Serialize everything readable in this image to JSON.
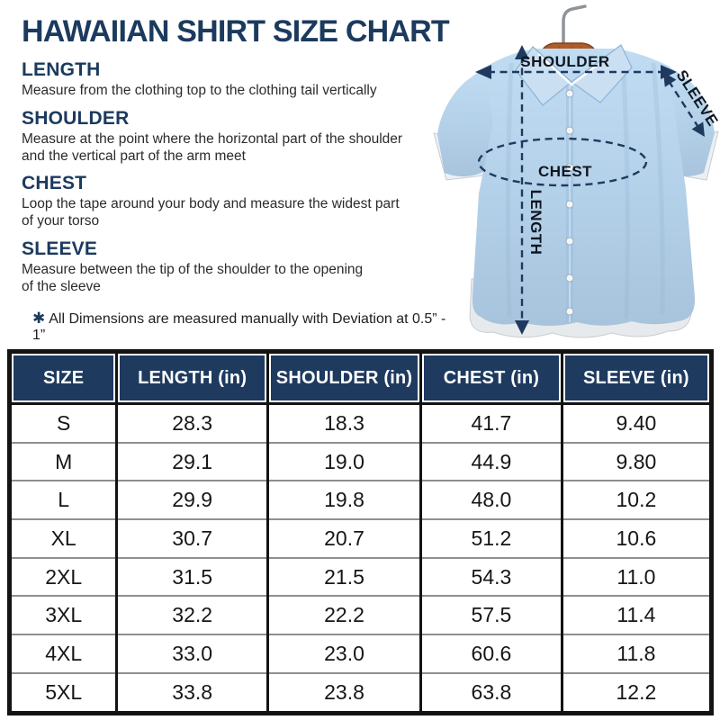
{
  "title": "HAWAIIAN SHIRT SIZE CHART",
  "sections": [
    {
      "heading": "LENGTH",
      "body": "Measure from the clothing top to the clothing tail vertically"
    },
    {
      "heading": "SHOULDER",
      "body": "Measure at the point where the horizontal part of the shoulder\nand the vertical part of the arm meet"
    },
    {
      "heading": "CHEST",
      "body": "Loop the tape around your body and measure the widest part\nof your torso"
    },
    {
      "heading": "SLEEVE",
      "body": "Measure between the tip of the shoulder to the opening\nof the sleeve"
    }
  ],
  "note": {
    "symbol": "✱",
    "text": "All Dimensions are measured manually with Deviation at 0.5” - 1”"
  },
  "diagram": {
    "labels": {
      "shoulder": "SHOULDER",
      "sleeve": "SLEEVE",
      "chest": "CHEST",
      "length": "LENGTH"
    }
  },
  "table": {
    "headers": [
      "SIZE",
      "LENGTH (in)",
      "SHOULDER (in)",
      "CHEST (in)",
      "SLEEVE (in)"
    ],
    "rows": [
      [
        "S",
        "28.3",
        "18.3",
        "41.7",
        "9.40"
      ],
      [
        "M",
        "29.1",
        "19.0",
        "44.9",
        "9.80"
      ],
      [
        "L",
        "29.9",
        "19.8",
        "48.0",
        "10.2"
      ],
      [
        "XL",
        "30.7",
        "20.7",
        "51.2",
        "10.6"
      ],
      [
        "2XL",
        "31.5",
        "21.5",
        "54.3",
        "11.0"
      ],
      [
        "3XL",
        "32.2",
        "22.2",
        "57.5",
        "11.4"
      ],
      [
        "4XL",
        "33.0",
        "23.0",
        "60.6",
        "11.8"
      ],
      [
        "5XL",
        "33.8",
        "23.8",
        "63.8",
        "12.2"
      ]
    ]
  },
  "chart_data": {
    "type": "table",
    "title": "HAWAIIAN SHIRT SIZE CHART",
    "columns": [
      "SIZE",
      "LENGTH (in)",
      "SHOULDER (in)",
      "CHEST (in)",
      "SLEEVE (in)"
    ],
    "rows": [
      [
        "S",
        28.3,
        18.3,
        41.7,
        9.4
      ],
      [
        "M",
        29.1,
        19.0,
        44.9,
        9.8
      ],
      [
        "L",
        29.9,
        19.8,
        48.0,
        10.2
      ],
      [
        "XL",
        30.7,
        20.7,
        51.2,
        10.6
      ],
      [
        "2XL",
        31.5,
        21.5,
        54.3,
        11.0
      ],
      [
        "3XL",
        32.2,
        22.2,
        57.5,
        11.4
      ],
      [
        "4XL",
        33.0,
        23.0,
        60.6,
        11.8
      ],
      [
        "5XL",
        33.8,
        23.8,
        63.8,
        12.2
      ]
    ]
  },
  "colors": {
    "navy": "#1c3a5e",
    "table_header_bg": "#1e3a5f",
    "table_border": "#131313",
    "row_divider": "#8f8f8f",
    "shirt_blue": "#b3d0e9",
    "shirt_trim": "#edf0f2",
    "hanger_brown": "#b05d2b",
    "annotation": "#1e3a5f"
  }
}
